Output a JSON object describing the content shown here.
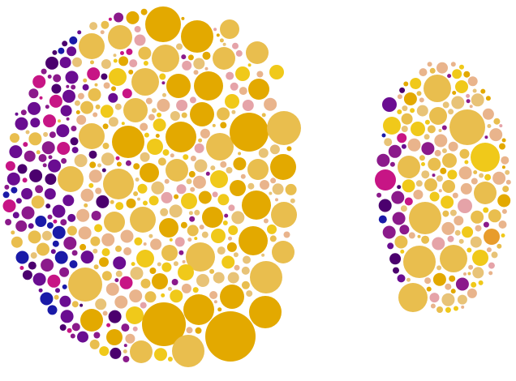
{
  "palette": {
    "gold": "#e3a900",
    "gold_light": "#e9be4e",
    "yellow": "#f0c91a",
    "tan": "#e8c377",
    "peach": "#e9b48c",
    "pink_light": "#e5a3a8",
    "orange": "#e89c2c",
    "magenta": "#c71585",
    "purple": "#6a0d91",
    "violet": "#8b1a8b",
    "deep_purple": "#4b006e",
    "navy": "#1a1aa8"
  },
  "clusters": [
    {
      "label": "",
      "size": 2040
    },
    {
      "label": "",
      "size": 610
    }
  ]
}
